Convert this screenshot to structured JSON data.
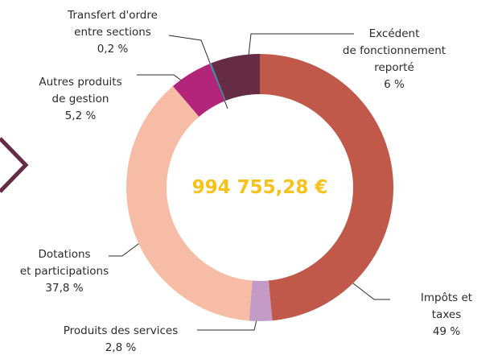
{
  "chart_data": {
    "type": "donut",
    "center_label": "994 755,28 €",
    "categories": [
      "Impôts et taxes",
      "Produits des services",
      "Dotations\net participations",
      "Autres produits\nde gestion",
      "Transfert d'ordre\nentre sections",
      "Excédent\nde fonctionnement\nreporté"
    ],
    "values": [
      49,
      2.8,
      37.8,
      5.2,
      0.2,
      6
    ],
    "value_labels": [
      "49 %",
      "2,8 %",
      "37,8 %",
      "5,2 %",
      "0,2 %",
      "6 %"
    ],
    "colors": [
      "#c0594a",
      "#c49bc6",
      "#f7bca6",
      "#b3247b",
      "#3b8fa3",
      "#662c45"
    ]
  }
}
